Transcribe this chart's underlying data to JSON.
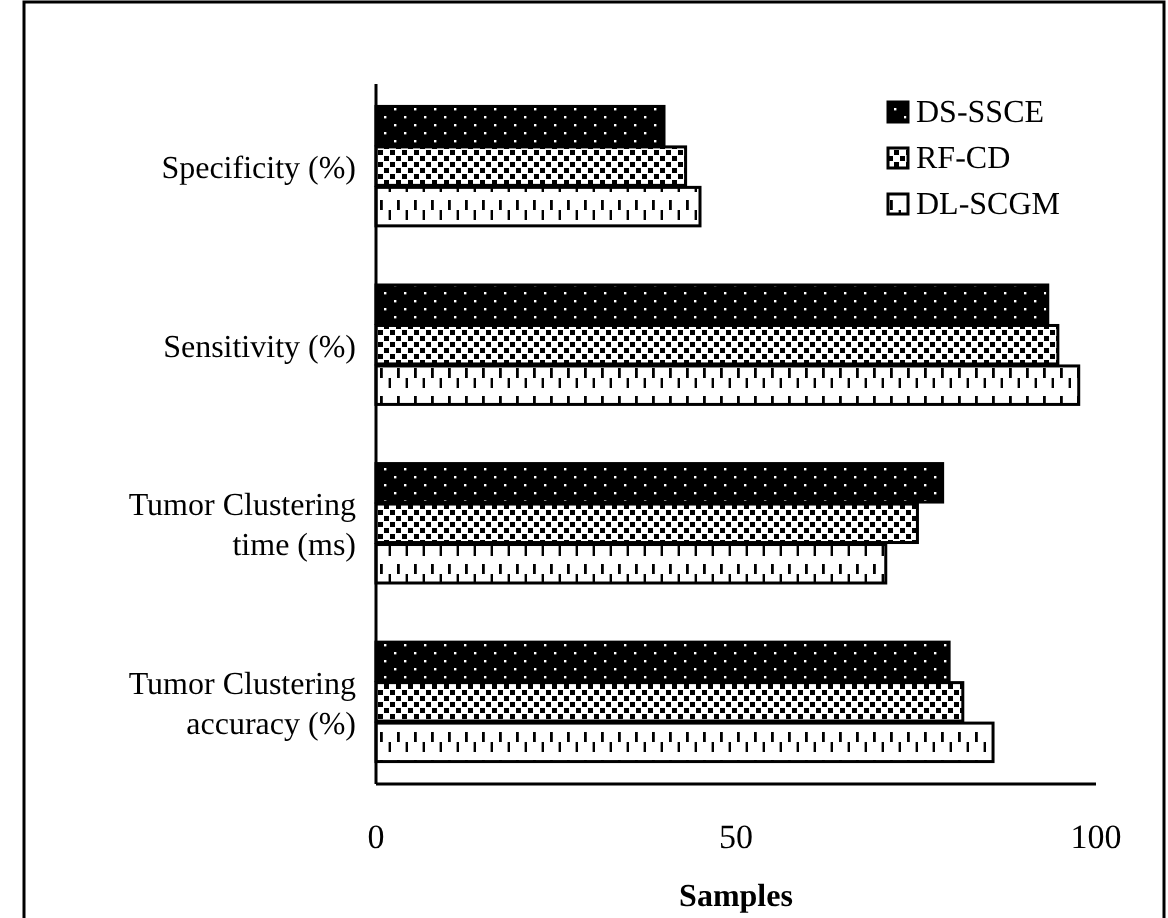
{
  "chart_data": {
    "type": "bar",
    "orientation": "horizontal",
    "xlabel": "Samples",
    "categories": [
      "Specificity (%)",
      "Sensitivity (%)",
      "Tumor Clustering time (ms)",
      "Tumor Clustering accuracy (%)"
    ],
    "series": [
      {
        "name": "DS-SSCE",
        "color": "#000000",
        "values": [
          40,
          93.3,
          78.7,
          79.6
        ]
      },
      {
        "name": "RF-CD",
        "color": "#000000",
        "values": [
          43,
          94.7,
          75.2,
          81.5
        ]
      },
      {
        "name": "DL-SCGM",
        "color": "#000000",
        "values": [
          45,
          97.6,
          70.8,
          85.7
        ]
      }
    ],
    "xlim": [
      0,
      100
    ],
    "xticks": [
      0,
      50,
      100
    ],
    "grid": false,
    "legend": "top right"
  }
}
